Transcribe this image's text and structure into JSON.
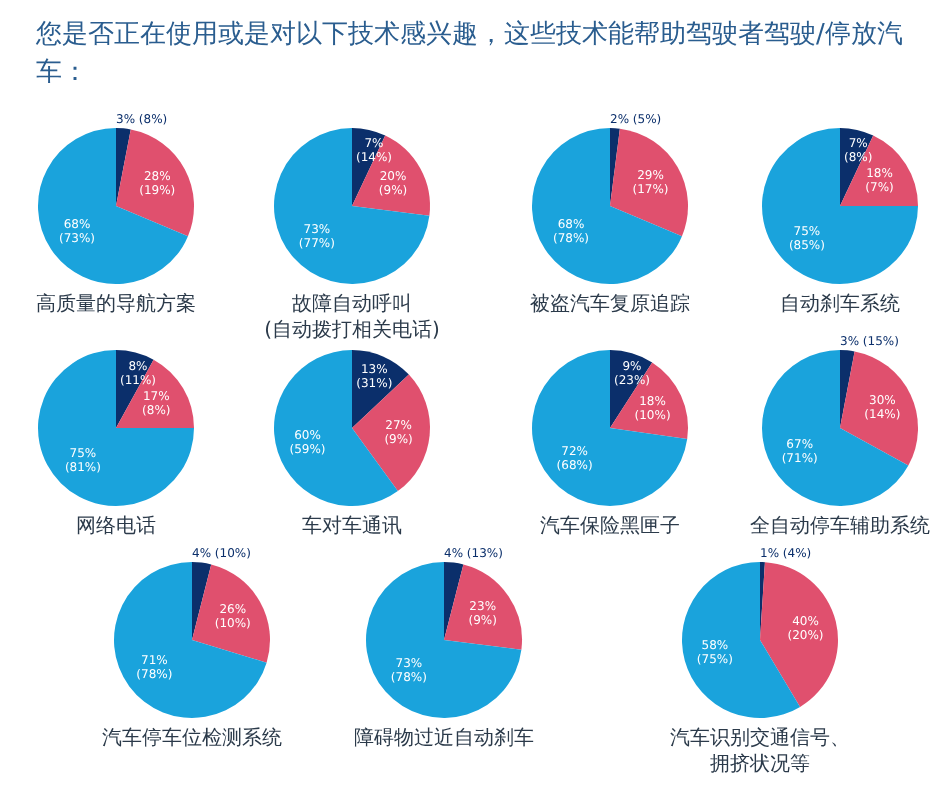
{
  "chart_data": [
    {
      "type": "pie",
      "title": "您是否正在使用或是对以下技术感兴趣，这些技术能帮助驾驶者驾驶/停放汽车：",
      "xlabel": "高质量的导航方案",
      "categories": [
        null,
        null,
        null
      ],
      "values": [
        3,
        28,
        68
      ],
      "value_labels": [
        "3% (8%)",
        "28% (19%)",
        "68% (73%)"
      ],
      "colors": [
        "#0b2f6b",
        "#e0506e",
        "#1aa3dc"
      ]
    },
    {
      "type": "pie",
      "xlabel": "故障自动呼叫\n(自动拨打相关电话)",
      "categories": [
        null,
        null,
        null
      ],
      "values": [
        7,
        20,
        73
      ],
      "value_labels": [
        "7% (14%)",
        "20% (9%)",
        "73% (77%)"
      ],
      "colors": [
        "#0b2f6b",
        "#e0506e",
        "#1aa3dc"
      ]
    },
    {
      "type": "pie",
      "xlabel": "被盗汽车复原追踪",
      "categories": [
        null,
        null,
        null
      ],
      "values": [
        2,
        29,
        68
      ],
      "value_labels": [
        "2% (5%)",
        "29% (17%)",
        "68% (78%)"
      ],
      "colors": [
        "#0b2f6b",
        "#e0506e",
        "#1aa3dc"
      ]
    },
    {
      "type": "pie",
      "xlabel": "自动刹车系统",
      "categories": [
        null,
        null,
        null
      ],
      "values": [
        7,
        18,
        75
      ],
      "value_labels": [
        "7% (8%)",
        "18% (7%)",
        "75% (85%)"
      ],
      "colors": [
        "#0b2f6b",
        "#e0506e",
        "#1aa3dc"
      ]
    },
    {
      "type": "pie",
      "xlabel": "网络电话",
      "categories": [
        null,
        null,
        null
      ],
      "values": [
        8,
        17,
        75
      ],
      "value_labels": [
        "8% (11%)",
        "17% (8%)",
        "75% (81%)"
      ],
      "colors": [
        "#0b2f6b",
        "#e0506e",
        "#1aa3dc"
      ]
    },
    {
      "type": "pie",
      "xlabel": "车对车通讯",
      "categories": [
        null,
        null,
        null
      ],
      "values": [
        13,
        27,
        60
      ],
      "value_labels": [
        "13% (31%)",
        "27% (9%)",
        "60% (59%)"
      ],
      "colors": [
        "#0b2f6b",
        "#e0506e",
        "#1aa3dc"
      ]
    },
    {
      "type": "pie",
      "xlabel": "汽车保险黑匣子",
      "categories": [
        null,
        null,
        null
      ],
      "values": [
        9,
        18,
        72
      ],
      "value_labels": [
        "9% (23%)",
        "18% (10%)",
        "72% (68%)"
      ],
      "colors": [
        "#0b2f6b",
        "#e0506e",
        "#1aa3dc"
      ]
    },
    {
      "type": "pie",
      "xlabel": "全自动停车辅助系统",
      "categories": [
        null,
        null,
        null
      ],
      "values": [
        3,
        30,
        67
      ],
      "value_labels": [
        "3% (15%)",
        "30% (14%)",
        "67% (71%)"
      ],
      "colors": [
        "#0b2f6b",
        "#e0506e",
        "#1aa3dc"
      ]
    },
    {
      "type": "pie",
      "xlabel": "汽车停车位检测系统",
      "categories": [
        null,
        null,
        null
      ],
      "values": [
        4,
        26,
        71
      ],
      "value_labels": [
        "4% (10%)",
        "26% (10%)",
        "71% (78%)"
      ],
      "colors": [
        "#0b2f6b",
        "#e0506e",
        "#1aa3dc"
      ]
    },
    {
      "type": "pie",
      "xlabel": "障碍物过近自动刹车",
      "categories": [
        null,
        null,
        null
      ],
      "values": [
        4,
        23,
        73
      ],
      "value_labels": [
        "4% (13%)",
        "23% (9%)",
        "73% (78%)"
      ],
      "colors": [
        "#0b2f6b",
        "#e0506e",
        "#1aa3dc"
      ]
    },
    {
      "type": "pie",
      "xlabel": "汽车识别交通信号、拥挤状况等",
      "categories": [
        null,
        null,
        null
      ],
      "values": [
        1,
        40,
        58
      ],
      "value_labels": [
        "1% (4%)",
        "40% (20%)",
        "58% (75%)"
      ],
      "colors": [
        "#0b2f6b",
        "#e0506e",
        "#1aa3dc"
      ]
    }
  ]
}
